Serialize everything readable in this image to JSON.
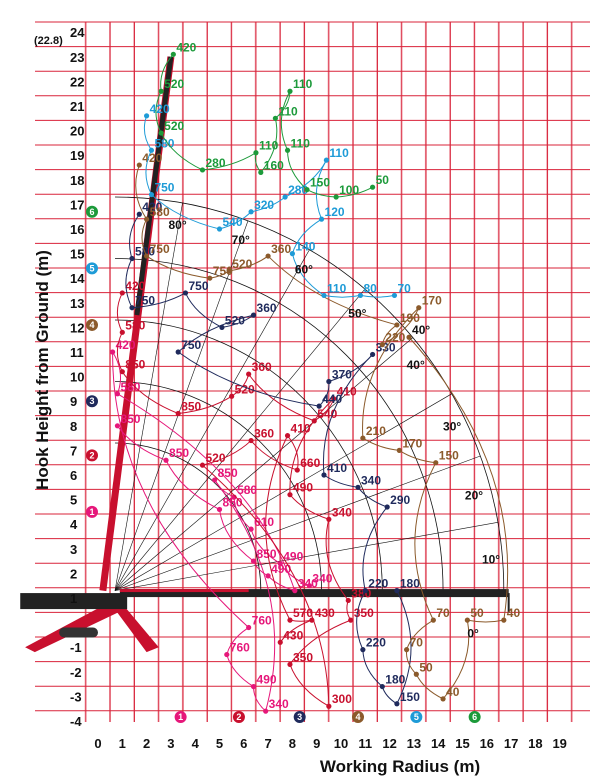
{
  "chart_data": {
    "type": "load-chart",
    "xlabel": "Working Radius (m)",
    "ylabel": "Hook Height from Ground (m)",
    "xlim": [
      -4,
      19
    ],
    "ylim": [
      -4,
      24
    ],
    "x_ticks": [
      "0",
      "1",
      "2",
      "3",
      "4",
      "5",
      "6",
      "7",
      "8",
      "9",
      "10",
      "11",
      "12",
      "13",
      "14",
      "15",
      "16",
      "17",
      "18",
      "19"
    ],
    "y_ticks": [
      "-4",
      "-3",
      "-2",
      "-1",
      "1",
      "2",
      "3",
      "4",
      "5",
      "6",
      "7",
      "8",
      "9",
      "10",
      "11",
      "12",
      "13",
      "14",
      "15",
      "16",
      "17",
      "18",
      "19",
      "20",
      "21",
      "22",
      "23",
      "24"
    ],
    "max_height_label": "(22.8)",
    "grid": true,
    "colors": {
      "grid": "#d9233a",
      "boom": "#c8102e",
      "boom_dark": "#222222",
      "s1": "#e6177a",
      "s2": "#c8102e",
      "s3": "#1f2a5c",
      "s4": "#8b5a2b",
      "s5": "#1e9bd7",
      "s6": "#1c9a3a"
    },
    "series": [
      {
        "name": "1",
        "color": "#e6177a",
        "points": [
          {
            "x": 0.8,
            "y": 8.0,
            "label": "850"
          },
          {
            "x": 2.8,
            "y": 6.6,
            "label": "850"
          },
          {
            "x": 5.0,
            "y": 4.6,
            "label": "850"
          },
          {
            "x": 6.4,
            "y": 2.5,
            "label": "850"
          },
          {
            "x": 7.0,
            "y": 1.9,
            "label": "490"
          },
          {
            "x": 8.1,
            "y": 1.3,
            "label": "340"
          },
          {
            "x": 0.8,
            "y": 9.3,
            "label": "580"
          },
          {
            "x": 0.6,
            "y": 11.0,
            "label": "420"
          },
          {
            "x": 6.2,
            "y": -0.2,
            "label": "760"
          },
          {
            "x": 5.3,
            "y": -1.3,
            "label": "760"
          },
          {
            "x": 6.4,
            "y": -2.6,
            "label": "490"
          },
          {
            "x": 6.9,
            "y": -3.6,
            "label": "340"
          },
          {
            "x": 4.8,
            "y": 5.8,
            "label": "850"
          },
          {
            "x": 5.6,
            "y": 5.1,
            "label": "580"
          },
          {
            "x": 6.3,
            "y": 3.8,
            "label": "610"
          },
          {
            "x": 7.5,
            "y": 2.4,
            "label": "490"
          },
          {
            "x": 8.7,
            "y": 1.5,
            "label": "340"
          }
        ]
      },
      {
        "name": "2",
        "color": "#c8102e",
        "points": [
          {
            "x": 1.0,
            "y": 13.4,
            "label": "420"
          },
          {
            "x": 1.0,
            "y": 11.8,
            "label": "580"
          },
          {
            "x": 1.0,
            "y": 10.2,
            "label": "850"
          },
          {
            "x": 3.3,
            "y": 8.5,
            "label": "850"
          },
          {
            "x": 5.5,
            "y": 9.2,
            "label": "520"
          },
          {
            "x": 6.2,
            "y": 10.1,
            "label": "360"
          },
          {
            "x": 8.9,
            "y": 8.2,
            "label": "540"
          },
          {
            "x": 9.7,
            "y": 9.1,
            "label": "410"
          },
          {
            "x": 7.9,
            "y": 5.2,
            "label": "490"
          },
          {
            "x": 9.5,
            "y": 4.2,
            "label": "340"
          },
          {
            "x": 10.3,
            "y": 0.9,
            "label": "380"
          },
          {
            "x": 10.4,
            "y": 0.1,
            "label": "350"
          },
          {
            "x": 7.9,
            "y": -1.7,
            "label": "350"
          },
          {
            "x": 9.5,
            "y": -3.4,
            "label": "300"
          },
          {
            "x": 4.3,
            "y": 6.4,
            "label": "520"
          },
          {
            "x": 6.3,
            "y": 7.4,
            "label": "360"
          },
          {
            "x": 8.2,
            "y": 6.2,
            "label": "660"
          },
          {
            "x": 7.8,
            "y": 7.6,
            "label": "410"
          },
          {
            "x": 7.9,
            "y": 0.1,
            "label": "570"
          },
          {
            "x": 8.8,
            "y": 0.1,
            "label": "430"
          },
          {
            "x": 7.5,
            "y": -0.8,
            "label": "430"
          }
        ]
      },
      {
        "name": "3",
        "color": "#1f2a5c",
        "points": [
          {
            "x": 1.7,
            "y": 16.6,
            "label": "420"
          },
          {
            "x": 1.4,
            "y": 14.8,
            "label": "580"
          },
          {
            "x": 1.4,
            "y": 12.8,
            "label": "750"
          },
          {
            "x": 3.6,
            "y": 13.4,
            "label": "750"
          },
          {
            "x": 5.1,
            "y": 12.0,
            "label": "520"
          },
          {
            "x": 6.4,
            "y": 12.5,
            "label": "360"
          },
          {
            "x": 3.3,
            "y": 11.0,
            "label": "750"
          },
          {
            "x": 9.1,
            "y": 8.8,
            "label": "440"
          },
          {
            "x": 9.5,
            "y": 9.8,
            "label": "370"
          },
          {
            "x": 11.3,
            "y": 10.9,
            "label": "330"
          },
          {
            "x": 9.3,
            "y": 6.0,
            "label": "410"
          },
          {
            "x": 10.7,
            "y": 5.5,
            "label": "340"
          },
          {
            "x": 11.9,
            "y": 4.7,
            "label": "290"
          },
          {
            "x": 11.0,
            "y": 1.3,
            "label": "220"
          },
          {
            "x": 10.9,
            "y": -1.1,
            "label": "220"
          },
          {
            "x": 11.7,
            "y": -2.6,
            "label": "180"
          },
          {
            "x": 12.3,
            "y": -3.3,
            "label": "150"
          },
          {
            "x": 12.3,
            "y": 1.3,
            "label": "180"
          }
        ]
      },
      {
        "name": "4",
        "color": "#8b5a2b",
        "points": [
          {
            "x": 1.7,
            "y": 18.6,
            "label": "420"
          },
          {
            "x": 2.0,
            "y": 16.4,
            "label": "580"
          },
          {
            "x": 2.0,
            "y": 14.9,
            "label": "750"
          },
          {
            "x": 4.6,
            "y": 14.0,
            "label": "750"
          },
          {
            "x": 5.4,
            "y": 14.3,
            "label": "520"
          },
          {
            "x": 7.0,
            "y": 14.9,
            "label": "360"
          },
          {
            "x": 12.3,
            "y": 12.1,
            "label": "190"
          },
          {
            "x": 11.7,
            "y": 11.3,
            "label": "220"
          },
          {
            "x": 13.2,
            "y": 12.8,
            "label": "170"
          },
          {
            "x": 10.9,
            "y": 7.5,
            "label": "210"
          },
          {
            "x": 12.4,
            "y": 7.0,
            "label": "170"
          },
          {
            "x": 13.9,
            "y": 6.5,
            "label": "150"
          },
          {
            "x": 13.8,
            "y": 0.1,
            "label": "70"
          },
          {
            "x": 12.7,
            "y": -1.1,
            "label": "70"
          },
          {
            "x": 13.1,
            "y": -2.1,
            "label": "50"
          },
          {
            "x": 14.2,
            "y": -3.1,
            "label": "40"
          },
          {
            "x": 15.2,
            "y": 0.1,
            "label": "50"
          },
          {
            "x": 16.7,
            "y": 0.1,
            "label": "40"
          },
          {
            "x": 12.8,
            "y": 11.6,
            "label": "40°"
          }
        ]
      },
      {
        "name": "5",
        "color": "#1e9bd7",
        "points": [
          {
            "x": 2.0,
            "y": 20.6,
            "label": "420"
          },
          {
            "x": 2.2,
            "y": 19.2,
            "label": "580"
          },
          {
            "x": 2.2,
            "y": 17.4,
            "label": "750"
          },
          {
            "x": 5.0,
            "y": 16.0,
            "label": "540"
          },
          {
            "x": 6.3,
            "y": 16.7,
            "label": "320"
          },
          {
            "x": 7.7,
            "y": 17.3,
            "label": "280"
          },
          {
            "x": 9.4,
            "y": 18.8,
            "label": "110"
          },
          {
            "x": 9.2,
            "y": 16.4,
            "label": "120"
          },
          {
            "x": 8.0,
            "y": 15.0,
            "label": "140"
          },
          {
            "x": 9.3,
            "y": 13.3,
            "label": "110"
          },
          {
            "x": 10.8,
            "y": 13.3,
            "label": "80"
          },
          {
            "x": 12.2,
            "y": 13.3,
            "label": "70"
          }
        ]
      },
      {
        "name": "6",
        "color": "#1c9a3a",
        "points": [
          {
            "x": 3.1,
            "y": 23.1,
            "label": "420"
          },
          {
            "x": 2.6,
            "y": 21.6,
            "label": "520"
          },
          {
            "x": 2.6,
            "y": 19.9,
            "label": "520"
          },
          {
            "x": 4.3,
            "y": 18.4,
            "label": "280"
          },
          {
            "x": 6.5,
            "y": 19.1,
            "label": "110"
          },
          {
            "x": 6.7,
            "y": 18.3,
            "label": "160"
          },
          {
            "x": 7.3,
            "y": 20.5,
            "label": "110"
          },
          {
            "x": 7.9,
            "y": 21.6,
            "label": "110"
          },
          {
            "x": 7.8,
            "y": 19.2,
            "label": "110"
          },
          {
            "x": 8.6,
            "y": 17.6,
            "label": "150"
          },
          {
            "x": 9.8,
            "y": 17.3,
            "label": "100"
          },
          {
            "x": 11.3,
            "y": 17.7,
            "label": "50"
          }
        ]
      }
    ],
    "angle_labels": [
      {
        "text": "80°",
        "x": 2.9,
        "y": 16.0
      },
      {
        "text": "70°",
        "x": 5.5,
        "y": 15.4
      },
      {
        "text": "60°",
        "x": 8.1,
        "y": 14.2
      },
      {
        "text": "50°",
        "x": 10.3,
        "y": 12.4
      },
      {
        "text": "40°",
        "x": 12.7,
        "y": 10.3
      },
      {
        "text": "30°",
        "x": 14.2,
        "y": 7.8
      },
      {
        "text": "20°",
        "x": 15.1,
        "y": 5.0
      },
      {
        "text": "10°",
        "x": 15.8,
        "y": 2.4
      },
      {
        "text": "0°",
        "x": 15.2,
        "y": -0.6
      }
    ],
    "section_badges_left": [
      {
        "num": "1",
        "y": 4.5
      },
      {
        "num": "2",
        "y": 6.8
      },
      {
        "num": "3",
        "y": 9.0
      },
      {
        "num": "4",
        "y": 12.1
      },
      {
        "num": "5",
        "y": 14.4
      },
      {
        "num": "6",
        "y": 16.7
      }
    ],
    "section_badges_bottom": [
      {
        "num": "1",
        "x": 3.4
      },
      {
        "num": "2",
        "x": 5.8
      },
      {
        "num": "3",
        "x": 8.3
      },
      {
        "num": "4",
        "x": 10.7
      },
      {
        "num": "5",
        "x": 13.1
      },
      {
        "num": "6",
        "x": 15.5
      }
    ]
  }
}
